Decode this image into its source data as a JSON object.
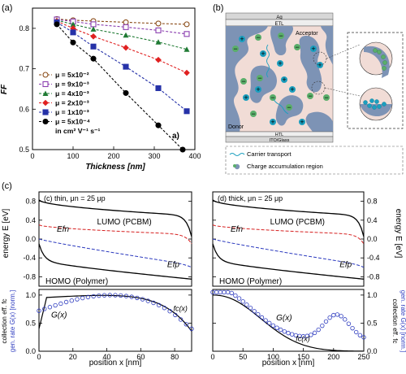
{
  "panels": {
    "a": {
      "label": "(a)",
      "corner": "a)"
    },
    "b": {
      "label": "(b)"
    },
    "c": {
      "label": "(c)"
    }
  },
  "chart_data": [
    {
      "id": "a",
      "type": "line",
      "ylabel": "FF",
      "xlabel": "Thickness [nm]",
      "xlim": [
        0,
        400
      ],
      "ylim": [
        0.5,
        0.85
      ],
      "xticks": [
        0,
        100,
        200,
        300,
        400
      ],
      "yticks": [
        0.5,
        0.6,
        0.7,
        0.8
      ],
      "legend_note": "in cm² V⁻¹ s⁻¹",
      "series": [
        {
          "name": "μ = 5x10⁻²",
          "color": "#8a4b17",
          "marker": "circle-open",
          "x": [
            60,
            100,
            150,
            230,
            310,
            380
          ],
          "y": [
            0.823,
            0.82,
            0.818,
            0.815,
            0.812,
            0.81
          ]
        },
        {
          "name": "μ = 9x10⁻³",
          "color": "#8b3fb0",
          "marker": "square-open",
          "x": [
            60,
            100,
            150,
            230,
            310,
            380
          ],
          "y": [
            0.822,
            0.817,
            0.81,
            0.803,
            0.795,
            0.786
          ]
        },
        {
          "name": "μ = 4x10⁻³",
          "color": "#1f7a33",
          "marker": "triangle",
          "x": [
            60,
            100,
            150,
            230,
            310,
            380
          ],
          "y": [
            0.82,
            0.81,
            0.798,
            0.783,
            0.766,
            0.748
          ]
        },
        {
          "name": "μ = 2x10⁻³",
          "color": "#e02020",
          "marker": "diamond",
          "x": [
            60,
            100,
            150,
            230,
            310,
            380
          ],
          "y": [
            0.818,
            0.8,
            0.78,
            0.752,
            0.722,
            0.69
          ]
        },
        {
          "name": "μ = 1x10⁻³",
          "color": "#2632a8",
          "marker": "square",
          "x": [
            60,
            100,
            150,
            230,
            310,
            380
          ],
          "y": [
            0.815,
            0.79,
            0.755,
            0.705,
            0.652,
            0.595
          ]
        },
        {
          "name": "μ = 5x10⁻⁴",
          "color": "#000000",
          "marker": "circle",
          "x": [
            60,
            100,
            150,
            230,
            310,
            370
          ],
          "y": [
            0.81,
            0.765,
            0.725,
            0.64,
            0.56,
            0.5
          ]
        }
      ]
    },
    {
      "id": "c-left",
      "type": "line",
      "title": "(c) thin, μn = 25 μp",
      "xlabel": "position x [nm]",
      "xlim": [
        0,
        90
      ],
      "xticks": [
        0,
        20,
        40,
        60,
        80
      ],
      "top": {
        "ylim": [
          -1.0,
          1.0
        ],
        "yticks": [
          -0.8,
          -0.4,
          0.0,
          0.4,
          0.8
        ],
        "labels": {
          "lumo": "LUMO (PCBM)",
          "homo": "HOMO (Polymer)",
          "efn": "Efn",
          "efp": "Efp"
        }
      },
      "bottom": {
        "ylim": [
          0,
          1.1
        ],
        "yticks": [
          0.0,
          0.5,
          1.0
        ],
        "labels": {
          "fc": "fc(x)",
          "g": "G(x)"
        }
      }
    },
    {
      "id": "c-right",
      "type": "line",
      "title": "(d) thick, μn = 25 μp",
      "xlabel": "position x [nm]",
      "xlim": [
        0,
        250
      ],
      "xticks": [
        0,
        50,
        100,
        150,
        200,
        250
      ],
      "top": {
        "ylim": [
          -1.0,
          1.0
        ],
        "yticks": [
          -0.8,
          -0.4,
          0.0,
          0.4,
          0.8
        ],
        "ylabel": "energy E [eV]",
        "labels": {
          "lumo": "LUMO (PCBM)",
          "homo": "HOMO (Polymer)",
          "efn": "Efn",
          "efp": "Efp"
        }
      },
      "bottom": {
        "ylim": [
          0,
          1.1
        ],
        "yticks": [
          0.0,
          0.5,
          1.0
        ],
        "ylabel1": "collection eff. fc",
        "ylabel2": "gen. rate G(x) [norm.]",
        "labels": {
          "fc": "fc(x)",
          "g": "G(x)"
        }
      }
    }
  ],
  "diagram_b": {
    "top_labels": [
      "Ag",
      "ETL"
    ],
    "acceptor": "Acceptor",
    "donor": "Donor",
    "bottom_labels": [
      "HTL",
      "ITO/Glass"
    ],
    "legend": [
      "Carrier transport",
      "Charge accumulation region"
    ],
    "colors": {
      "donor": "#7d93b5",
      "acceptor": "#f1dcd6",
      "plus": "#1b9fbf",
      "minus": "#5aae6a"
    }
  },
  "left_axis_labels": {
    "energy": "energy E [eV]",
    "coll1": "collection eff. fc",
    "coll2": "gen. rate G(x) [norm.]"
  }
}
